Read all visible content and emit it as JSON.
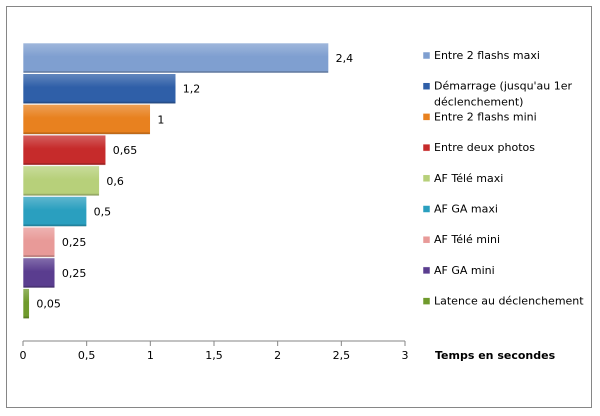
{
  "chart_data": {
    "type": "bar",
    "orientation": "horizontal",
    "xlabel": "Temps en secondes",
    "xlim": [
      0,
      3
    ],
    "xticks": [
      "0",
      "0,5",
      "1",
      "1,5",
      "2",
      "2,5",
      "3"
    ],
    "grid": false,
    "legend_position": "right",
    "bars": [
      {
        "label": "Entre 2 flashs maxi",
        "value": 2.4,
        "value_label": "2,4",
        "color": "#7f9fd0"
      },
      {
        "label": "Démarrage (jusqu'au 1er déclenchement)",
        "label_lines": [
          "Démarrage (jusqu'au 1er",
          "déclenchement)"
        ],
        "value": 1.2,
        "value_label": "1,2",
        "color": "#2f5fa8"
      },
      {
        "label": "Entre 2 flashs mini",
        "value": 1,
        "value_label": "1",
        "color": "#e8811f"
      },
      {
        "label": "Entre deux photos",
        "value": 0.65,
        "value_label": "0,65",
        "color": "#c62b2b"
      },
      {
        "label": "AF Télé maxi",
        "value": 0.6,
        "value_label": "0,6",
        "color": "#b7d07a"
      },
      {
        "label": "AF GA maxi",
        "value": 0.5,
        "value_label": "0,5",
        "color": "#2a9fbf"
      },
      {
        "label": "AF Télé mini",
        "value": 0.25,
        "value_label": "0,25",
        "color": "#e89a98"
      },
      {
        "label": "AF GA mini",
        "value": 0.25,
        "value_label": "0,25",
        "color": "#5a3d8f"
      },
      {
        "label": "Latence au déclenchement",
        "value": 0.05,
        "value_label": "0,05",
        "color": "#6f9a2c"
      }
    ]
  }
}
